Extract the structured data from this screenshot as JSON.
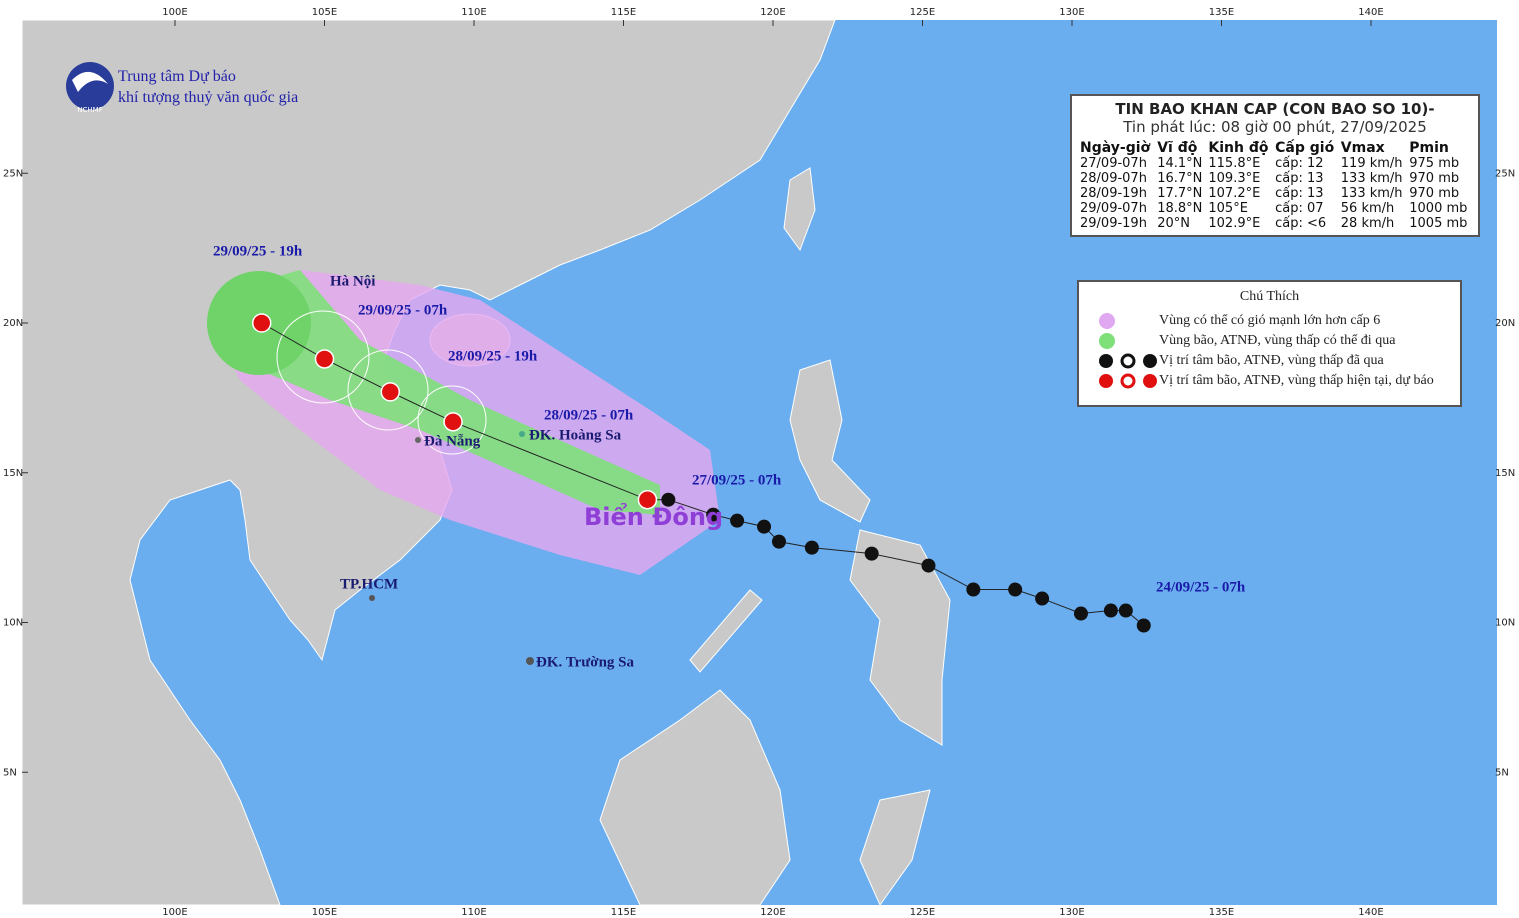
{
  "header": {
    "org_line1": "Trung tâm Dự báo",
    "org_line2": "khí tượng thuỷ văn quốc gia",
    "logo_text": "NCHMF"
  },
  "map": {
    "lon_ticks": [
      {
        "value": 100,
        "label": "100E"
      },
      {
        "value": 105,
        "label": "105E"
      },
      {
        "value": 110,
        "label": "110E"
      },
      {
        "value": 115,
        "label": "115E"
      },
      {
        "value": 120,
        "label": "120E"
      },
      {
        "value": 125,
        "label": "125E"
      },
      {
        "value": 130,
        "label": "130E"
      },
      {
        "value": 135,
        "label": "135E"
      },
      {
        "value": 140,
        "label": "140E"
      }
    ],
    "lat_ticks": [
      {
        "value": 25,
        "label": "25N"
      },
      {
        "value": 20,
        "label": "20N"
      },
      {
        "value": 15,
        "label": "15N"
      },
      {
        "value": 10,
        "label": "10N"
      },
      {
        "value": 5,
        "label": "5N"
      }
    ],
    "places": [
      "Hà Nội",
      "Đà Nẵng",
      "ĐK. Hoàng Sa",
      "TP.HCM",
      "ĐK. Trường Sa",
      "Biển Đông"
    ],
    "track_labels": [
      "29/09/25 - 19h",
      "29/09/25 - 07h",
      "28/09/25 - 19h",
      "28/09/25 - 07h",
      "27/09/25 - 07h",
      "24/09/25 - 07h"
    ]
  },
  "track": {
    "past": [
      {
        "lon": 116.5,
        "lat": 14.1
      },
      {
        "lon": 118.0,
        "lat": 13.6
      },
      {
        "lon": 118.8,
        "lat": 13.4
      },
      {
        "lon": 119.7,
        "lat": 13.2
      },
      {
        "lon": 120.2,
        "lat": 12.7
      },
      {
        "lon": 121.3,
        "lat": 12.5
      },
      {
        "lon": 123.3,
        "lat": 12.3
      },
      {
        "lon": 125.2,
        "lat": 11.9
      },
      {
        "lon": 126.7,
        "lat": 11.1
      },
      {
        "lon": 128.1,
        "lat": 11.1
      },
      {
        "lon": 129.0,
        "lat": 10.8
      },
      {
        "lon": 130.3,
        "lat": 10.3
      },
      {
        "lon": 131.3,
        "lat": 10.4
      },
      {
        "lon": 131.8,
        "lat": 10.4
      },
      {
        "lon": 132.4,
        "lat": 9.9
      }
    ],
    "forecast": [
      {
        "lon": 115.8,
        "lat": 14.1
      },
      {
        "lon": 109.3,
        "lat": 16.7
      },
      {
        "lon": 107.2,
        "lat": 17.7
      },
      {
        "lon": 105,
        "lat": 18.8
      },
      {
        "lon": 102.9,
        "lat": 20
      }
    ]
  },
  "info": {
    "title": "TIN BAO KHAN CAP (CON BAO SO 10)-",
    "subtitle": "Tin phát lúc: 08 giờ 00 phút, 27/09/2025",
    "columns": [
      "Ngày-giờ",
      "Vĩ độ",
      "Kinh độ",
      "Cấp gió",
      "Vmax",
      "Pmin"
    ],
    "rows": [
      [
        "27/09-07h",
        "14.1°N",
        "115.8°E",
        "cấp: 12",
        "119 km/h",
        "975 mb"
      ],
      [
        "28/09-07h",
        "16.7°N",
        "109.3°E",
        "cấp: 13",
        "133 km/h",
        "970 mb"
      ],
      [
        "28/09-19h",
        "17.7°N",
        "107.2°E",
        "cấp: 13",
        "133 km/h",
        "970 mb"
      ],
      [
        "29/09-07h",
        "18.8°N",
        "105°E",
        "cấp: 07",
        "56 km/h",
        "1000 mb"
      ],
      [
        "29/09-19h",
        "20°N",
        "102.9°E",
        "cấp: <6",
        "28 km/h",
        "1005 mb"
      ]
    ]
  },
  "legend": {
    "title": "Chú Thích",
    "items": [
      "Vùng có thể có gió mạnh lớn hơn cấp 6",
      "Vùng bão, ATNĐ, vùng thấp có thể đi qua",
      "Vị trí tâm bão, ATNĐ, vùng thấp đã qua",
      "Vị trí tâm bão, ATNĐ, vùng thấp hiện tại, dự báo"
    ]
  }
}
